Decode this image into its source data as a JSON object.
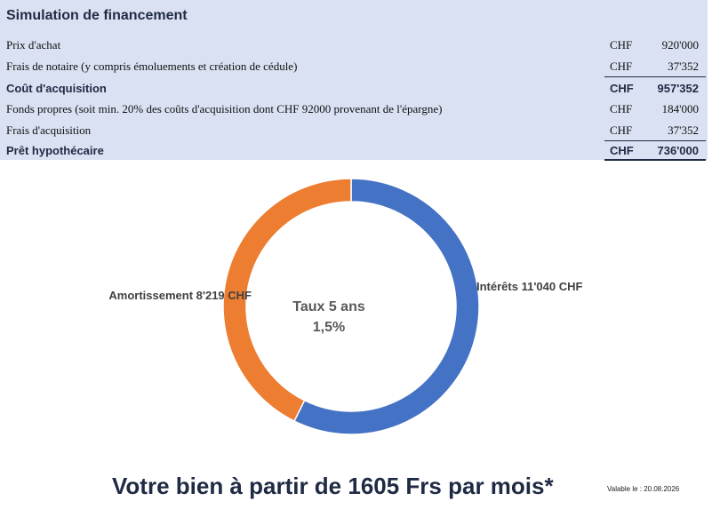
{
  "financing": {
    "title": "Simulation de financement",
    "rows": [
      {
        "label": "Prix d'achat",
        "currency": "CHF",
        "amount": "920'000"
      },
      {
        "label": "Frais de notaire (y compris émoluements et création de cédule)",
        "currency": "CHF",
        "amount": "37'352"
      },
      {
        "label": "Coût d'acquisition",
        "currency": "CHF",
        "amount": "957'352"
      },
      {
        "label": "Fonds propres (soit min. 20% des coûts d'acquisition dont CHF 92000 provenant de l'épargne)",
        "currency": "CHF",
        "amount": "184'000"
      },
      {
        "label": "Frais d'acquisition",
        "currency": "CHF",
        "amount": "37'352"
      },
      {
        "label": "Prêt hypothécaire",
        "currency": "CHF",
        "amount": "736'000"
      }
    ]
  },
  "chart_data": {
    "type": "pie",
    "donut": true,
    "center_label_line1": "Taux 5 ans",
    "center_label_line2": "1,5%",
    "categories": [
      "Intérêts",
      "Amortissement"
    ],
    "values": [
      11040,
      8219
    ],
    "value_labels": [
      "Intérêts  11'040  CHF",
      "Amortissement  8'219  CHF"
    ],
    "colors": [
      "#4472c4",
      "#ed7d31"
    ]
  },
  "footer": {
    "headline": "Votre bien à partir de 1605 Frs par mois*",
    "validity": "Valable le : 20.08.2026"
  }
}
